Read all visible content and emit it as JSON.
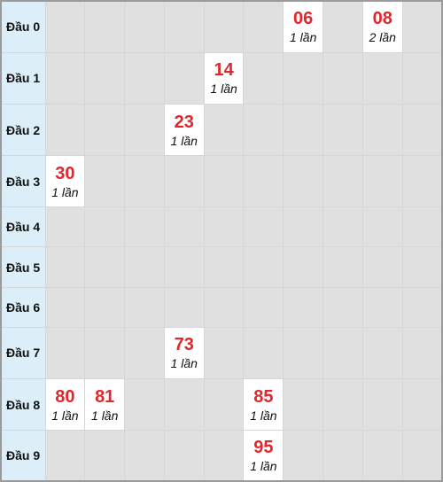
{
  "rows": [
    {
      "label": "Đầu 0",
      "hits": [
        {
          "col": 6,
          "number": "06",
          "count": "1 lần"
        },
        {
          "col": 8,
          "number": "08",
          "count": "2 lần"
        }
      ]
    },
    {
      "label": "Đầu 1",
      "hits": [
        {
          "col": 4,
          "number": "14",
          "count": "1 lần"
        }
      ]
    },
    {
      "label": "Đầu 2",
      "hits": [
        {
          "col": 3,
          "number": "23",
          "count": "1 lần"
        }
      ]
    },
    {
      "label": "Đầu 3",
      "hits": [
        {
          "col": 0,
          "number": "30",
          "count": "1 lần"
        }
      ]
    },
    {
      "label": "Đầu 4",
      "hits": []
    },
    {
      "label": "Đầu 5",
      "hits": []
    },
    {
      "label": "Đầu 6",
      "hits": []
    },
    {
      "label": "Đầu 7",
      "hits": [
        {
          "col": 3,
          "number": "73",
          "count": "1 lần"
        }
      ]
    },
    {
      "label": "Đầu 8",
      "hits": [
        {
          "col": 0,
          "number": "80",
          "count": "1 lần"
        },
        {
          "col": 1,
          "number": "81",
          "count": "1 lần"
        },
        {
          "col": 5,
          "number": "85",
          "count": "1 lần"
        }
      ]
    },
    {
      "label": "Đầu 9",
      "hits": [
        {
          "col": 5,
          "number": "95",
          "count": "1 lần"
        }
      ]
    }
  ],
  "colors": {
    "header_bg": "#dceff8",
    "empty_cell": "#e0e0e0",
    "hit_cell": "#ffffff",
    "number": "#e2262b"
  }
}
